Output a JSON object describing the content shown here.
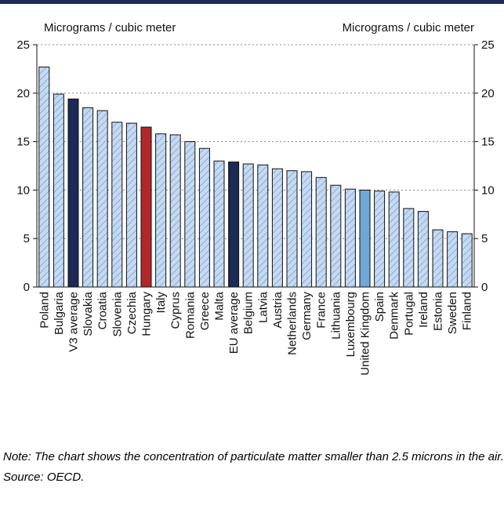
{
  "chart_data": {
    "type": "bar",
    "y_label": "Micrograms / cubic meter",
    "y2_label": "Micrograms / cubic meter",
    "categories": [
      "Poland",
      "Bulgaria",
      "V3 average",
      "Slovakia",
      "Croatia",
      "Slovenia",
      "Czechia",
      "Hungary",
      "Italy",
      "Cyprus",
      "Romania",
      "Greece",
      "Malta",
      "EU average",
      "Belgium",
      "Latvia",
      "Austria",
      "Netherlands",
      "Germany",
      "France",
      "Lithuania",
      "Luxembourg",
      "United Kingdom",
      "Spain",
      "Denmark",
      "Portugal",
      "Ireland",
      "Estonia",
      "Sweden",
      "Finland"
    ],
    "values": [
      22.7,
      19.9,
      19.4,
      18.5,
      18.2,
      17.0,
      16.9,
      16.5,
      15.8,
      15.7,
      15.0,
      14.3,
      13.0,
      12.9,
      12.7,
      12.6,
      12.2,
      12.0,
      11.9,
      11.3,
      10.5,
      10.1,
      10.0,
      9.9,
      9.8,
      8.1,
      7.8,
      5.9,
      5.7,
      5.5
    ],
    "color": "#c5d9f1",
    "hatch": true,
    "colors": [
      "#c5d9f1",
      "#c5d9f1",
      "#1b2a56",
      "#c5d9f1",
      "#c5d9f1",
      "#c5d9f1",
      "#c5d9f1",
      "#b0282a",
      "#c5d9f1",
      "#c5d9f1",
      "#c5d9f1",
      "#c5d9f1",
      "#c5d9f1",
      "#1b2a56",
      "#c5d9f1",
      "#c5d9f1",
      "#c5d9f1",
      "#c5d9f1",
      "#c5d9f1",
      "#c5d9f1",
      "#c5d9f1",
      "#c5d9f1",
      "#6fa8d6",
      "#c5d9f1",
      "#c5d9f1",
      "#c5d9f1",
      "#c5d9f1",
      "#c5d9f1",
      "#c5d9f1",
      "#c5d9f1"
    ],
    "ylim": [
      0,
      25
    ],
    "yticks": [
      0,
      5,
      10,
      15,
      20,
      25
    ],
    "y2lim": [
      0,
      25
    ],
    "y2ticks": [
      0,
      5,
      10,
      15,
      20,
      25
    ],
    "grid": true
  },
  "notes": {
    "note": "Note: The chart shows the concentration of particulate matter smaller than 2.5 microns in the air.",
    "source": "Source: OECD."
  }
}
